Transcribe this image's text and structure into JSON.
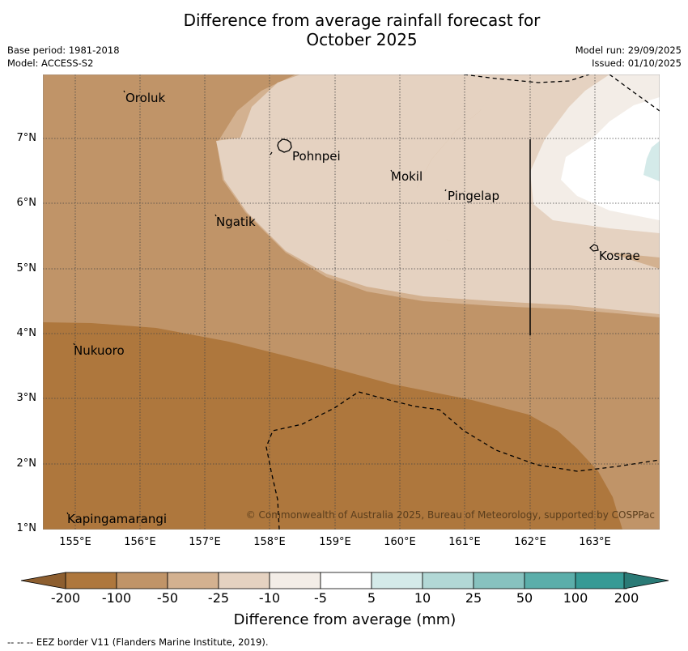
{
  "title_line1": "Difference from average rainfall forecast for",
  "title_line2": "October 2025",
  "meta_left": [
    "Base period: 1981-2018",
    "Model: ACCESS-S2"
  ],
  "meta_right": [
    "Model run: 29/09/2025",
    "Issued: 01/10/2025"
  ],
  "map": {
    "lon_labels": [
      "155°E",
      "156°E",
      "157°E",
      "158°E",
      "159°E",
      "160°E",
      "161°E",
      "162°E",
      "163°E"
    ],
    "lat_labels": [
      "7°N",
      "6°N",
      "5°N",
      "4°N",
      "3°N",
      "2°N",
      "1°N"
    ],
    "places": [
      {
        "name": "Oroluk",
        "lon": 155.8,
        "lat": 7.65
      },
      {
        "name": "Pohnpei",
        "lon": 158.35,
        "lat": 6.85
      },
      {
        "name": "Mokil",
        "lon": 159.85,
        "lat": 6.4
      },
      {
        "name": "Pingelap",
        "lon": 160.75,
        "lat": 6.15
      },
      {
        "name": "Ngatik",
        "lon": 157.15,
        "lat": 5.8
      },
      {
        "name": "Kosrae",
        "lon": 163.0,
        "lat": 5.3
      },
      {
        "name": "Nukuoro",
        "lon": 154.98,
        "lat": 3.77
      },
      {
        "name": "Kapingamarangi",
        "lon": 154.9,
        "lat": 1.2
      }
    ],
    "copyright": "© Commonwealth of Australia 2025, Bureau of Meteorology, supported by COSPPac"
  },
  "colorbar": {
    "ticks": [
      "-200",
      "-100",
      "-50",
      "-25",
      "-10",
      "-5",
      "5",
      "10",
      "25",
      "50",
      "100",
      "200"
    ],
    "colors": [
      "#ae773d",
      "#c09468",
      "#d3b190",
      "#e5d2c1",
      "#f3ede7",
      "#ffffff",
      "#d4eae9",
      "#b2d8d6",
      "#87c2bf",
      "#5baeaa",
      "#369a95"
    ],
    "under_color": "#8d5e2f",
    "over_color": "#2a7a76",
    "title": "Difference from average (mm)"
  },
  "footer": "--  --  -- EEZ border V11 (Flanders Marine Institute, 2019)."
}
